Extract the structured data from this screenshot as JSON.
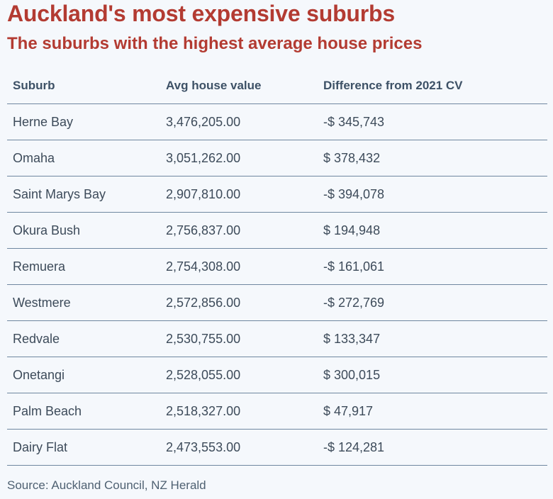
{
  "header": {
    "title": "Auckland's most expensive suburbs",
    "subtitle": "The suburbs with the highest average house prices"
  },
  "footer": {
    "source": "Source: Auckland Council, NZ Herald"
  },
  "colors": {
    "title": "#b33b32",
    "background": "#f5f8fc",
    "rule": "#6f87a0",
    "header_text": "#3d5166",
    "body_text": "#3d4b5a"
  },
  "chart_data": {
    "type": "table",
    "title": "Auckland's most expensive suburbs",
    "subtitle": "The suburbs with the highest average house prices",
    "columns": [
      "Suburb",
      "Avg house value",
      "Difference from 2021 CV"
    ],
    "rows": [
      [
        "Herne Bay",
        "3,476,205.00",
        "-$ 345,743"
      ],
      [
        "Omaha",
        "3,051,262.00",
        "$ 378,432"
      ],
      [
        "Saint Marys Bay",
        "2,907,810.00",
        "-$ 394,078"
      ],
      [
        "Okura Bush",
        "2,756,837.00",
        "$ 194,948"
      ],
      [
        "Remuera",
        "2,754,308.00",
        "-$ 161,061"
      ],
      [
        "Westmere",
        "2,572,856.00",
        "-$ 272,769"
      ],
      [
        "Redvale",
        "2,530,755.00",
        "$ 133,347"
      ],
      [
        "Onetangi",
        "2,528,055.00",
        "$ 300,015"
      ],
      [
        "Palm Beach",
        "2,518,327.00",
        "$ 47,917"
      ],
      [
        "Dairy Flat",
        "2,473,553.00",
        "-$ 124,281"
      ]
    ],
    "source": "Source: Auckland Council, NZ Herald"
  }
}
